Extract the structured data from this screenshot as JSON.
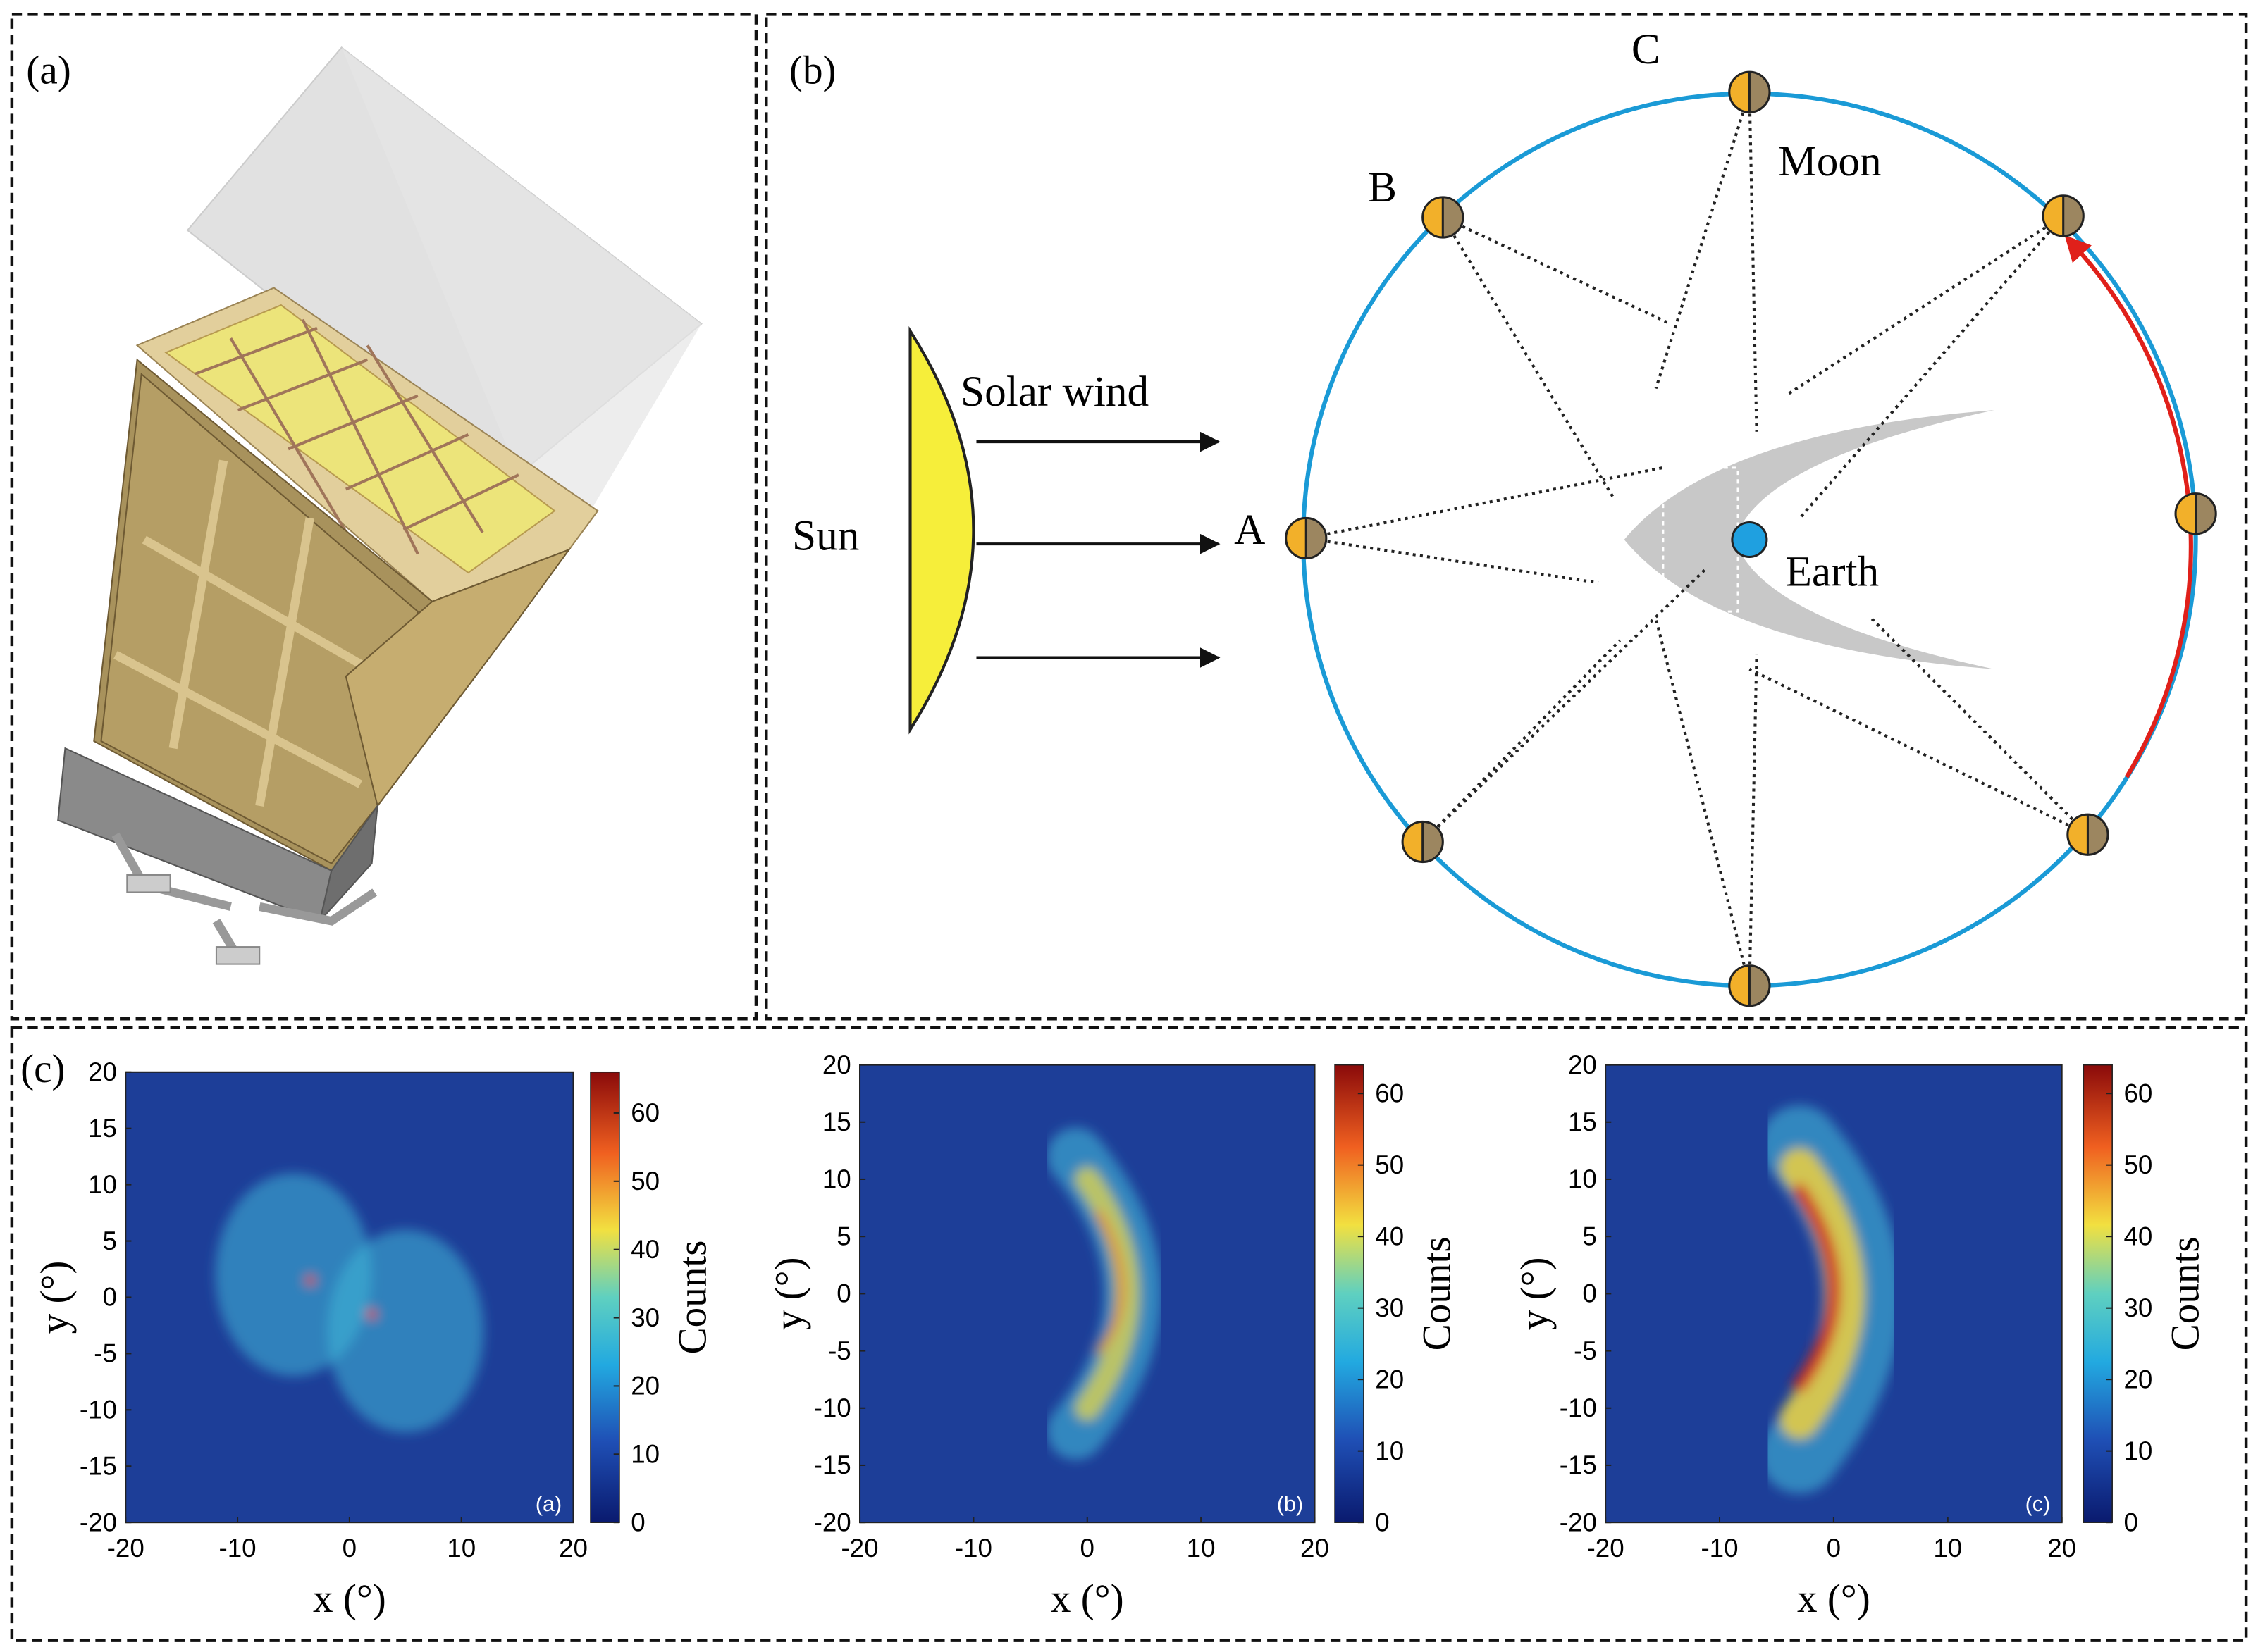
{
  "panel_a": {
    "label": "(a)"
  },
  "panel_b": {
    "label": "(b)",
    "sun": "Sun",
    "solar_wind": "Solar wind",
    "point_a": "A",
    "point_b": "B",
    "point_c": "C",
    "moon": "Moon",
    "earth": "Earth"
  },
  "panel_c": {
    "label": "(c)"
  },
  "chart_data": [
    {
      "type": "heatmap",
      "inset_label": "(a)",
      "xlabel": "x (°)",
      "ylabel": "y (°)",
      "colorbar_label": "Counts",
      "xlim": [
        -20,
        20
      ],
      "ylim": [
        -20,
        20
      ],
      "xticks": [
        -20,
        -10,
        0,
        10,
        20
      ],
      "yticks": [
        -20,
        -15,
        -10,
        -5,
        0,
        5,
        10,
        15,
        20
      ],
      "clim": [
        0,
        66
      ],
      "cticks": [
        0,
        10,
        20,
        30,
        40,
        50,
        60
      ]
    },
    {
      "type": "heatmap",
      "inset_label": "(b)",
      "xlabel": "x (°)",
      "ylabel": "y (°)",
      "colorbar_label": "Counts",
      "xlim": [
        -20,
        20
      ],
      "ylim": [
        -20,
        20
      ],
      "xticks": [
        -20,
        -10,
        0,
        10,
        20
      ],
      "yticks": [
        -20,
        -15,
        -10,
        -5,
        0,
        5,
        10,
        15,
        20
      ],
      "clim": [
        0,
        64
      ],
      "cticks": [
        0,
        10,
        20,
        30,
        40,
        50,
        60
      ]
    },
    {
      "type": "heatmap",
      "inset_label": "(c)",
      "xlabel": "x (°)",
      "ylabel": "y (°)",
      "colorbar_label": "Counts",
      "xlim": [
        -20,
        20
      ],
      "ylim": [
        -20,
        20
      ],
      "xticks": [
        -20,
        -10,
        0,
        10,
        20
      ],
      "yticks": [
        -20,
        -15,
        -10,
        -5,
        0,
        5,
        10,
        15,
        20
      ],
      "clim": [
        0,
        64
      ],
      "cticks": [
        0,
        10,
        20,
        30,
        40,
        50,
        60
      ]
    }
  ]
}
